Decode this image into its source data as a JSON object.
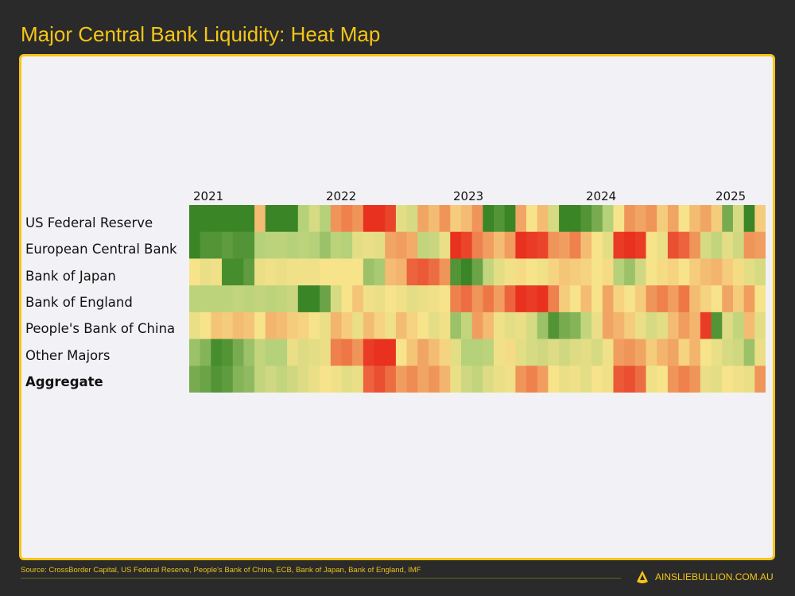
{
  "title": "Major Central Bank Liquidity: Heat Map",
  "chart_data": {
    "type": "heatmap",
    "title": "Major Central Bank Liquidity: Heat Map",
    "x_tick_labels": [
      "2021",
      "2022",
      "2023",
      "2024",
      "2025"
    ],
    "rows": [
      "US Federal Reserve",
      "European Central Bank",
      "Bank of Japan",
      "Bank of England",
      "People's Bank of China",
      "Other Majors",
      "Aggregate"
    ],
    "value_scale": "-2 (contracting, red) to 2 (expanding, green), monthly, Jan 2021 to mid 2025",
    "colors": {
      "-2": "#e8311f",
      "-1": "#f0955a",
      "0": "#f7e38a",
      "1": "#b5d17a",
      "2": "#3a8526"
    },
    "values": [
      [
        2,
        2,
        2,
        2,
        2,
        2,
        -0.5,
        2,
        2,
        2,
        1,
        0.5,
        1,
        -1,
        -1.2,
        -1,
        -2,
        -2,
        -1.8,
        0.3,
        0.5,
        -0.8,
        -0.5,
        -1,
        -0.3,
        -0.5,
        -1,
        2,
        1.8,
        2,
        -0.8,
        0,
        -0.5,
        0.5,
        2,
        2,
        1.8,
        1.5,
        1,
        0,
        -1,
        -0.8,
        -1,
        -0.3,
        -0.8,
        0,
        -0.5,
        -0.8,
        -0.3,
        1.5,
        0.5,
        2,
        -0.3
      ],
      [
        2,
        1.8,
        1.8,
        1.7,
        1.8,
        1.8,
        1,
        0.9,
        0.9,
        1,
        0.9,
        1,
        1.2,
        0.9,
        1,
        0.3,
        0.2,
        0.3,
        -0.8,
        -0.9,
        -0.7,
        0.8,
        0.7,
        0.2,
        -2,
        -1.8,
        -1.2,
        -0.9,
        -0.5,
        -0.9,
        -2,
        -1.9,
        -1.8,
        -1,
        -0.9,
        -1.2,
        -0.5,
        0,
        0.3,
        -1.9,
        -2,
        -1.9,
        0,
        0.2,
        -1.7,
        -1.5,
        -1,
        0.5,
        0.8,
        0.3,
        0.6,
        -1,
        -0.9
      ],
      [
        0,
        0.2,
        0.1,
        1.9,
        1.9,
        1.7,
        0.2,
        0.1,
        0.2,
        0.1,
        0.1,
        0.1,
        0,
        0,
        0,
        0,
        1.2,
        1.1,
        -0.5,
        -0.6,
        -1.5,
        -1.6,
        -1.4,
        -1,
        1.8,
        2,
        1.6,
        0.8,
        0.3,
        0.1,
        -0.1,
        0,
        0.1,
        -0.2,
        -0.4,
        -0.3,
        -0.2,
        0,
        -0.1,
        1,
        1.2,
        0.6,
        0,
        -0.1,
        -0.2,
        0,
        -0.3,
        -0.5,
        -0.6,
        -0.3,
        -0.1,
        0.3,
        0.5
      ],
      [
        0.9,
        0.9,
        0.9,
        0.9,
        0.8,
        0.9,
        0.8,
        0.9,
        0.8,
        0.7,
        2,
        2,
        1.6,
        0.5,
        0,
        -0.4,
        0.1,
        0.2,
        0,
        0.1,
        0.3,
        0.2,
        0.1,
        0,
        -1.2,
        -1.4,
        -1,
        -1.3,
        -0.9,
        -1.5,
        -2,
        -1.9,
        -2,
        -1.2,
        -0.3,
        0,
        -0.5,
        0,
        -0.8,
        -0.2,
        0,
        -0.3,
        -1,
        -1.2,
        -0.9,
        -1.3,
        -0.5,
        -0.2,
        0,
        -0.8,
        -0.3,
        -0.9,
        0
      ],
      [
        0.2,
        0,
        -0.4,
        -0.3,
        -0.5,
        -0.4,
        0,
        -0.6,
        -0.5,
        -0.3,
        -0.2,
        0,
        0.2,
        -0.6,
        -0.3,
        0.2,
        -0.5,
        -0.2,
        0.1,
        -0.5,
        -0.2,
        0,
        0.3,
        0.1,
        1.2,
        0.8,
        -0.9,
        -0.5,
        0.1,
        0.3,
        0.2,
        0.5,
        1.2,
        1.8,
        1.5,
        1.4,
        0.8,
        0.2,
        -0.8,
        -0.6,
        -0.3,
        0.2,
        0.5,
        0.3,
        -0.5,
        -0.9,
        -0.6,
        -1.9,
        1.8,
        0.4,
        0.8,
        -0.5,
        0.3
      ],
      [
        1.2,
        1.4,
        1.9,
        1.8,
        1.5,
        1.2,
        0.8,
        1,
        1,
        0.2,
        0.4,
        0.3,
        0.2,
        -1.2,
        -1.3,
        -1,
        -1.9,
        -2,
        -2,
        0,
        -0.4,
        -0.8,
        -0.5,
        -0.2,
        0.3,
        1,
        1,
        0.9,
        0.1,
        -0.1,
        0.3,
        0.5,
        0.6,
        0.4,
        0.6,
        0.4,
        0.3,
        0.5,
        0.1,
        -0.9,
        -1,
        -0.8,
        -0.3,
        -0.6,
        -0.8,
        -0.2,
        -0.6,
        0,
        0.2,
        0.5,
        0.6,
        1.2,
        0.2
      ],
      [
        1.5,
        1.6,
        1.8,
        1.7,
        1.4,
        1.3,
        0.8,
        0.6,
        0.8,
        0.6,
        0.4,
        0.2,
        0,
        0.1,
        0.3,
        0.2,
        -1.5,
        -1.7,
        -1.4,
        -0.9,
        -1.1,
        -0.8,
        -1,
        -0.6,
        0.2,
        0.6,
        0.8,
        0.4,
        0.2,
        0.1,
        -1,
        -1.2,
        -0.9,
        0,
        0.2,
        0.1,
        0.3,
        0,
        0.1,
        -1.6,
        -1.7,
        -1.4,
        0.1,
        0,
        -1,
        -1.2,
        -1,
        0.2,
        0.3,
        0,
        0.1,
        0.2,
        -1
      ]
    ]
  },
  "footer": {
    "source": "Source: CrossBorder Capital, US Federal Reserve, People's Bank of China, ECB, Bank of Japan, Bank of England, IMF",
    "brand": "AINSLIEBULLION.COM.AU"
  }
}
